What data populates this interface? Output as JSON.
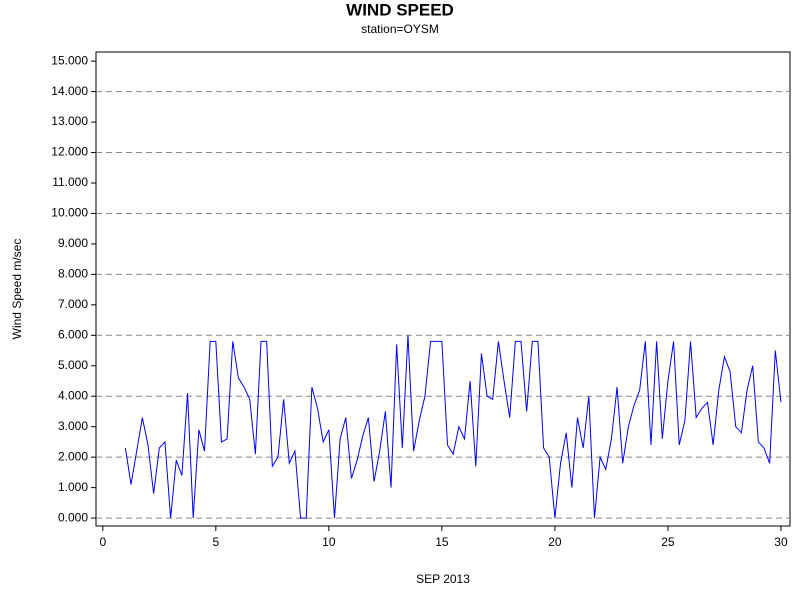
{
  "chart_data": {
    "type": "line",
    "title": "WIND SPEED",
    "subtitle": "station=OYSM",
    "x_label": "SEP 2013",
    "y_label": "Wind Speed m/sec",
    "xlim": [
      -0.3,
      30.4
    ],
    "ylim": [
      -0.26,
      15.3
    ],
    "xticks": [
      0,
      5,
      10,
      15,
      20,
      25,
      30
    ],
    "yticks": [
      {
        "value": 0,
        "label": "0.000"
      },
      {
        "value": 1,
        "label": "1.000"
      },
      {
        "value": 2,
        "label": "2.000"
      },
      {
        "value": 3,
        "label": "3.000"
      },
      {
        "value": 4,
        "label": "4.000"
      },
      {
        "value": 5,
        "label": "5.000"
      },
      {
        "value": 6,
        "label": "6.000"
      },
      {
        "value": 7,
        "label": "7.000"
      },
      {
        "value": 8,
        "label": "8.000"
      },
      {
        "value": 9,
        "label": "9.000"
      },
      {
        "value": 10,
        "label": "10.000"
      },
      {
        "value": 11,
        "label": "11.000"
      },
      {
        "value": 12,
        "label": "12.000"
      },
      {
        "value": 13,
        "label": "13.000"
      },
      {
        "value": 14,
        "label": "14.000"
      },
      {
        "value": 15,
        "label": "15.000"
      }
    ],
    "grid": true,
    "color": "#0000ff",
    "x": [
      1,
      1.25,
      1.5,
      1.75,
      2,
      2.25,
      2.5,
      2.75,
      3,
      3.25,
      3.5,
      3.75,
      4,
      4.25,
      4.5,
      4.75,
      5,
      5.25,
      5.5,
      5.75,
      6,
      6.25,
      6.5,
      6.75,
      7,
      7.25,
      7.5,
      7.75,
      8,
      8.25,
      8.5,
      8.75,
      9,
      9.25,
      9.5,
      9.75,
      10,
      10.25,
      10.5,
      10.75,
      11,
      11.25,
      11.5,
      11.75,
      12,
      12.25,
      12.5,
      12.75,
      13,
      13.25,
      13.5,
      13.75,
      14,
      14.25,
      14.5,
      14.75,
      15,
      15.25,
      15.5,
      15.75,
      16,
      16.25,
      16.5,
      16.75,
      17,
      17.25,
      17.5,
      17.75,
      18,
      18.25,
      18.5,
      18.75,
      19,
      19.25,
      19.5,
      19.75,
      20,
      20.25,
      20.5,
      20.75,
      21,
      21.25,
      21.5,
      21.75,
      22,
      22.25,
      22.5,
      22.75,
      23,
      23.25,
      23.5,
      23.75,
      24,
      24.25,
      24.5,
      24.75,
      25,
      25.25,
      25.5,
      25.75,
      26,
      26.25,
      26.5,
      26.75,
      27,
      27.25,
      27.5,
      27.75,
      28,
      28.25,
      28.5,
      28.75,
      29,
      29.25,
      29.5,
      29.75,
      30
    ],
    "values": [
      2.3,
      1.1,
      2.2,
      3.3,
      2.4,
      0.8,
      2.3,
      2.5,
      0,
      1.9,
      1.4,
      4.1,
      0,
      2.9,
      2.2,
      5.8,
      5.8,
      2.5,
      2.6,
      5.8,
      4.6,
      4.3,
      3.9,
      2.1,
      5.8,
      5.8,
      1.7,
      2,
      3.9,
      1.8,
      2.2,
      0,
      0,
      4.3,
      3.6,
      2.5,
      2.9,
      0,
      2.6,
      3.3,
      1.3,
      1.9,
      2.7,
      3.3,
      1.2,
      2.2,
      3.5,
      1,
      5.7,
      2.3,
      6,
      2.2,
      3.2,
      4,
      5.8,
      5.8,
      5.8,
      2.4,
      2.1,
      3,
      2.6,
      4.5,
      1.7,
      5.4,
      4,
      3.9,
      5.8,
      4.5,
      3.3,
      5.8,
      5.8,
      3.5,
      5.8,
      5.8,
      2.3,
      2,
      0,
      1.8,
      2.8,
      1,
      3.3,
      2.3,
      4,
      0,
      2,
      1.6,
      2.6,
      4.3,
      1.8,
      3,
      3.7,
      4.2,
      5.8,
      2.4,
      5.8,
      2.6,
      4.5,
      5.8,
      2.4,
      3.2,
      5.8,
      3.3,
      3.6,
      3.8,
      2.4,
      4.2,
      5.3,
      4.8,
      3,
      2.8,
      4.2,
      5,
      2.5,
      2.3,
      1.8,
      5.5,
      3.8
    ]
  }
}
